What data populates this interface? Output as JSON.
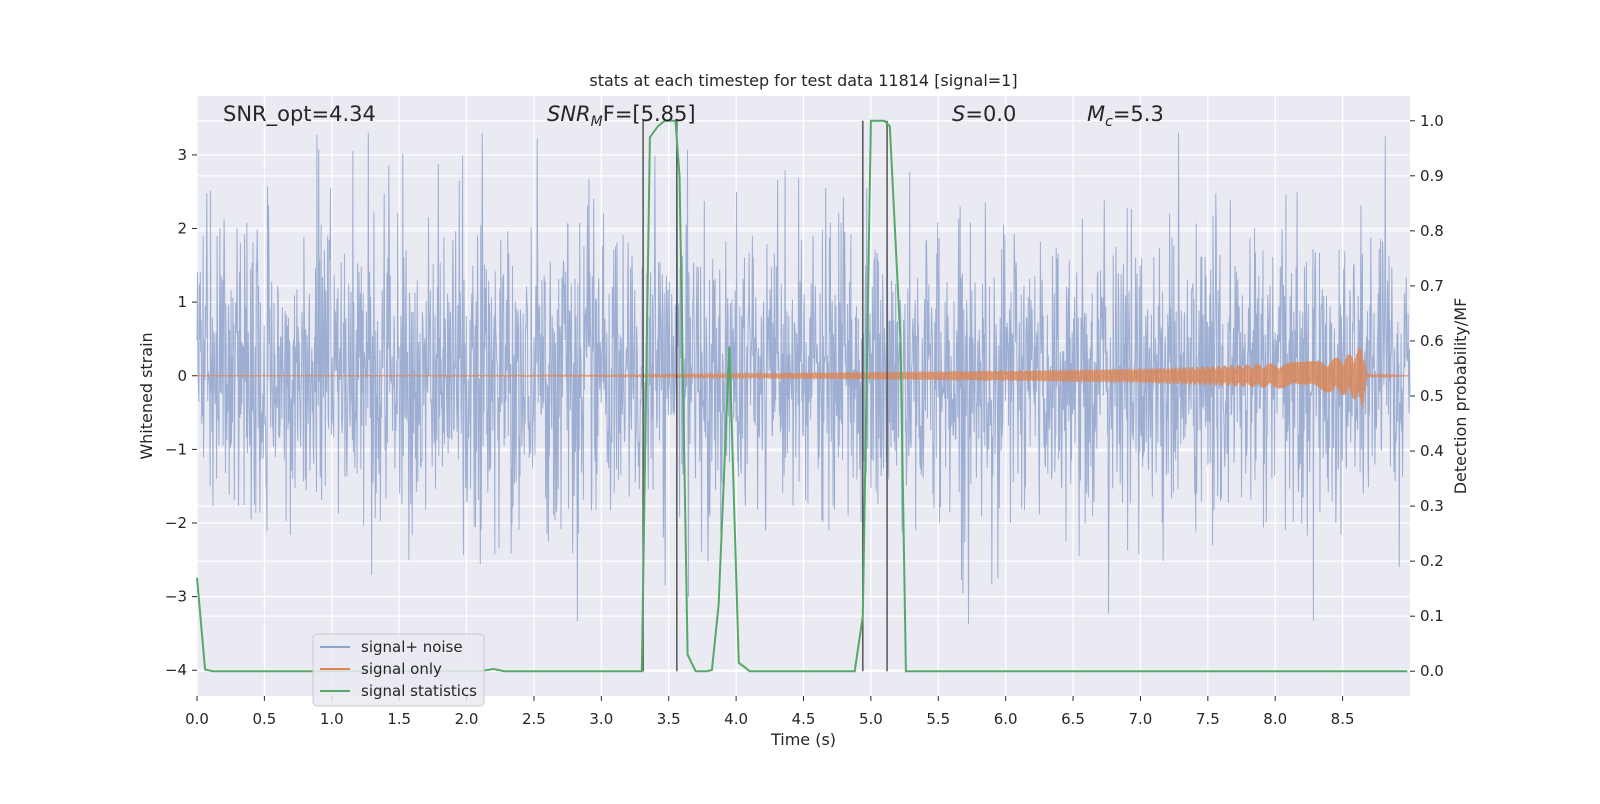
{
  "chart_data": {
    "type": "line",
    "title": "stats at each timestep for test data 11814 [signal=1]",
    "xlabel": "Time (s)",
    "ylabel": "Whitened strain",
    "ylabel_right": "Detection probability/MF",
    "xlim": [
      0,
      9.0
    ],
    "ylim": [
      -4.35,
      3.8
    ],
    "ylim_right": [
      -0.045,
      1.045
    ],
    "x_ticks": [
      "0.0",
      "0.5",
      "1.0",
      "1.5",
      "2.0",
      "2.5",
      "3.0",
      "3.5",
      "4.0",
      "4.5",
      "5.0",
      "5.5",
      "6.0",
      "6.5",
      "7.0",
      "7.5",
      "8.0",
      "8.5"
    ],
    "y_ticks": [
      "−4",
      "−3",
      "−2",
      "−1",
      "0",
      "1",
      "2",
      "3"
    ],
    "y_ticks_right": [
      "0.0",
      "0.1",
      "0.2",
      "0.3",
      "0.4",
      "0.5",
      "0.6",
      "0.7",
      "0.8",
      "0.9",
      "1.0"
    ],
    "grid": true,
    "legend_placement": "lower-left",
    "annotations": {
      "snr_opt": "SNR_opt=4.34",
      "snr_mf_main": "SNR",
      "snr_mf_sub": "M",
      "snr_mf_rest": "F=[5.85]",
      "s_main": "S",
      "s_rest": "=0.0",
      "mc_main": "M",
      "mc_sub": "c",
      "mc_rest": "=5.3"
    },
    "series": [
      {
        "name": "signal+ noise",
        "color": "#8fa3cc",
        "description_values": "whitened noise fluctuating roughly between -3.5 and 3.3 across 0-9 s"
      },
      {
        "name": "signal only",
        "color": "#dd8452",
        "envelope": {
          "x": [
            0.0,
            3.0,
            4.0,
            5.0,
            6.0,
            7.0,
            7.5,
            8.0,
            8.3,
            8.5,
            8.6,
            8.65,
            8.68,
            9.0
          ],
          "amplitude": [
            0.0,
            0.01,
            0.03,
            0.05,
            0.07,
            0.1,
            0.13,
            0.17,
            0.2,
            0.26,
            0.33,
            0.45,
            0.02,
            0.0
          ]
        }
      },
      {
        "name": "signal statistics",
        "color": "#55a868",
        "axis": "right",
        "x": [
          0.0,
          0.06,
          0.12,
          2.1,
          2.2,
          2.28,
          3.3,
          3.36,
          3.42,
          3.47,
          3.55,
          3.58,
          3.64,
          3.7,
          3.78,
          3.82,
          3.87,
          3.95,
          4.02,
          4.05,
          4.1,
          4.88,
          4.94,
          5.0,
          5.1,
          5.14,
          5.22,
          5.26,
          8.98
        ],
        "y": [
          0.17,
          0.003,
          0.0,
          0.0,
          0.004,
          0.0,
          0.0,
          0.97,
          0.99,
          1.0,
          1.0,
          0.9,
          0.03,
          0.0,
          0.0,
          0.002,
          0.12,
          0.59,
          0.015,
          0.01,
          0.0,
          0.0,
          0.1,
          1.0,
          1.0,
          0.99,
          0.6,
          0.0,
          0.0
        ]
      }
    ],
    "vertical_lines_x": [
      3.31,
      3.56,
      4.94,
      5.12
    ],
    "vertical_line_color": "#555555"
  }
}
